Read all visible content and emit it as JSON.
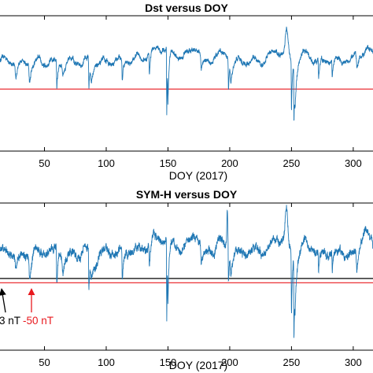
{
  "chart_data": [
    {
      "type": "line",
      "title": "Dst versus DOY",
      "xlabel": "DOY (2017)",
      "ylabel": "",
      "xlim": [
        14,
        316
      ],
      "ylim": [
        -160,
        80
      ],
      "xticks": [
        50,
        100,
        150,
        200,
        250,
        300
      ],
      "xtick_labels": [
        "50",
        "100",
        "150",
        "200",
        "250",
        "300"
      ],
      "series_color": "#1f77b4",
      "baseline": 0,
      "noise": 6,
      "features": [
        {
          "doy": 27,
          "value": -28,
          "w": 3
        },
        {
          "doy": 38,
          "value": -35,
          "w": 2
        },
        {
          "doy": 60,
          "value": -48,
          "w": 1
        },
        {
          "doy": 65,
          "value": -22,
          "w": 3
        },
        {
          "doy": 86,
          "value": -55,
          "w": 1
        },
        {
          "doy": 88,
          "value": -30,
          "w": 3
        },
        {
          "doy": 113,
          "value": -40,
          "w": 1
        },
        {
          "doy": 135,
          "value": -38,
          "w": 1
        },
        {
          "doy": 145,
          "value": 22,
          "w": 10
        },
        {
          "doy": 149,
          "value": -125,
          "w": 0.6
        },
        {
          "doy": 150,
          "value": -75,
          "w": 1
        },
        {
          "doy": 172,
          "value": 25,
          "w": 4
        },
        {
          "doy": 177,
          "value": -30,
          "w": 2
        },
        {
          "doy": 194,
          "value": 12,
          "w": 5
        },
        {
          "doy": 199,
          "value": -55,
          "w": 0.8
        },
        {
          "doy": 201,
          "value": -35,
          "w": 2
        },
        {
          "doy": 240,
          "value": 18,
          "w": 6
        },
        {
          "doy": 246,
          "value": 42,
          "w": 1
        },
        {
          "doy": 250,
          "value": -95,
          "w": 0.8
        },
        {
          "doy": 252,
          "value": -105,
          "w": 0.6
        },
        {
          "doy": 253,
          "value": -60,
          "w": 2
        },
        {
          "doy": 260,
          "value": 15,
          "w": 4
        },
        {
          "doy": 272,
          "value": -35,
          "w": 1
        },
        {
          "doy": 283,
          "value": -30,
          "w": 1
        },
        {
          "doy": 303,
          "value": -25,
          "w": 2
        },
        {
          "doy": 310,
          "value": 20,
          "w": 5
        }
      ],
      "ref_lines": [
        {
          "value": -50,
          "color": "#e8191e"
        }
      ]
    },
    {
      "type": "line",
      "title": "SYM-H versus DOY",
      "xlabel": "DOY (2017)",
      "ylabel": "",
      "xlim": [
        14,
        316
      ],
      "ylim": [
        -160,
        80
      ],
      "xticks": [
        50,
        100,
        150,
        200,
        250,
        300
      ],
      "xtick_labels": [
        "50",
        "100",
        "150",
        "200",
        "250",
        "300"
      ],
      "series_color": "#1f77b4",
      "baseline": 0,
      "noise": 9,
      "features": [
        {
          "doy": 27,
          "value": -30,
          "w": 3
        },
        {
          "doy": 38,
          "value": -40,
          "w": 2
        },
        {
          "doy": 60,
          "value": -55,
          "w": 1
        },
        {
          "doy": 65,
          "value": -28,
          "w": 3
        },
        {
          "doy": 86,
          "value": -65,
          "w": 1
        },
        {
          "doy": 88,
          "value": -35,
          "w": 3
        },
        {
          "doy": 113,
          "value": -45,
          "w": 1
        },
        {
          "doy": 135,
          "value": -42,
          "w": 1
        },
        {
          "doy": 145,
          "value": 25,
          "w": 10
        },
        {
          "doy": 149,
          "value": -140,
          "w": 0.6
        },
        {
          "doy": 150,
          "value": -85,
          "w": 1
        },
        {
          "doy": 172,
          "value": 28,
          "w": 4
        },
        {
          "doy": 177,
          "value": -35,
          "w": 2
        },
        {
          "doy": 194,
          "value": 15,
          "w": 5
        },
        {
          "doy": 198,
          "value": 70,
          "w": 0.4
        },
        {
          "doy": 199,
          "value": -60,
          "w": 0.8
        },
        {
          "doy": 201,
          "value": -38,
          "w": 2
        },
        {
          "doy": 240,
          "value": 20,
          "w": 6
        },
        {
          "doy": 246,
          "value": 58,
          "w": 1
        },
        {
          "doy": 250,
          "value": -110,
          "w": 0.8
        },
        {
          "doy": 252,
          "value": -138,
          "w": 0.6
        },
        {
          "doy": 253,
          "value": -70,
          "w": 2
        },
        {
          "doy": 260,
          "value": 18,
          "w": 4
        },
        {
          "doy": 272,
          "value": -40,
          "w": 1
        },
        {
          "doy": 283,
          "value": -35,
          "w": 1
        },
        {
          "doy": 303,
          "value": -30,
          "w": 2
        },
        {
          "doy": 310,
          "value": 40,
          "w": 3
        }
      ],
      "ref_lines": [
        {
          "value": -43,
          "color": "#000000"
        },
        {
          "value": -50,
          "color": "#e8191e"
        }
      ],
      "annotations": [
        {
          "text": "3 nT",
          "color": "#000000"
        },
        {
          "text": "-50 nT",
          "color": "#e8191e"
        }
      ]
    }
  ]
}
